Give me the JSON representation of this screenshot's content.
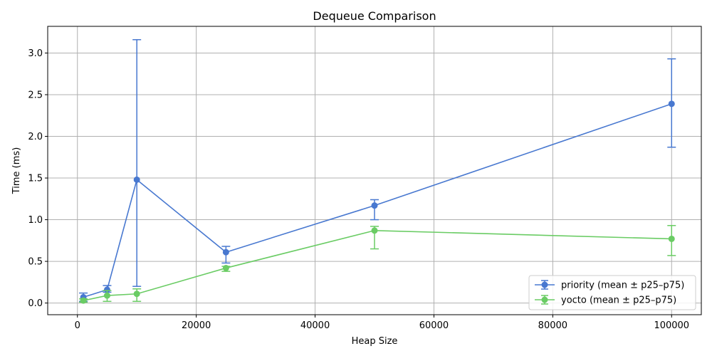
{
  "chart_data": {
    "type": "line",
    "title": "Dequeue Comparison",
    "xlabel": "Heap Size",
    "ylabel": "Time (ms)",
    "xlim": [
      -5000,
      105000
    ],
    "ylim": [
      -0.14,
      3.32
    ],
    "xticks": [
      0,
      20000,
      40000,
      60000,
      80000,
      100000
    ],
    "yticks": [
      0.0,
      0.5,
      1.0,
      1.5,
      2.0,
      2.5,
      3.0
    ],
    "xtick_labels": [
      "0",
      "20000",
      "40000",
      "60000",
      "80000",
      "100000"
    ],
    "ytick_labels": [
      "0.0",
      "0.5",
      "1.0",
      "1.5",
      "2.0",
      "2.5",
      "3.0"
    ],
    "grid": true,
    "legend_position": "lower-right",
    "series": [
      {
        "name": "priority (mean ± p25–p75)",
        "color": "#4878d0",
        "x": [
          1000,
          5000,
          10000,
          25000,
          50000,
          100000
        ],
        "y": [
          0.07,
          0.16,
          1.48,
          0.61,
          1.17,
          2.39
        ],
        "err_low": [
          0.02,
          0.13,
          0.2,
          0.48,
          1.0,
          1.87
        ],
        "err_high": [
          0.12,
          0.21,
          3.16,
          0.68,
          1.24,
          2.93
        ]
      },
      {
        "name": "yocto (mean ± p25–p75)",
        "color": "#6acc64",
        "x": [
          1000,
          5000,
          10000,
          25000,
          50000,
          100000
        ],
        "y": [
          0.03,
          0.09,
          0.11,
          0.42,
          0.87,
          0.77
        ],
        "err_low": [
          0.01,
          0.02,
          0.02,
          0.38,
          0.65,
          0.57
        ],
        "err_high": [
          0.05,
          0.15,
          0.17,
          0.44,
          0.92,
          0.93
        ]
      }
    ]
  }
}
